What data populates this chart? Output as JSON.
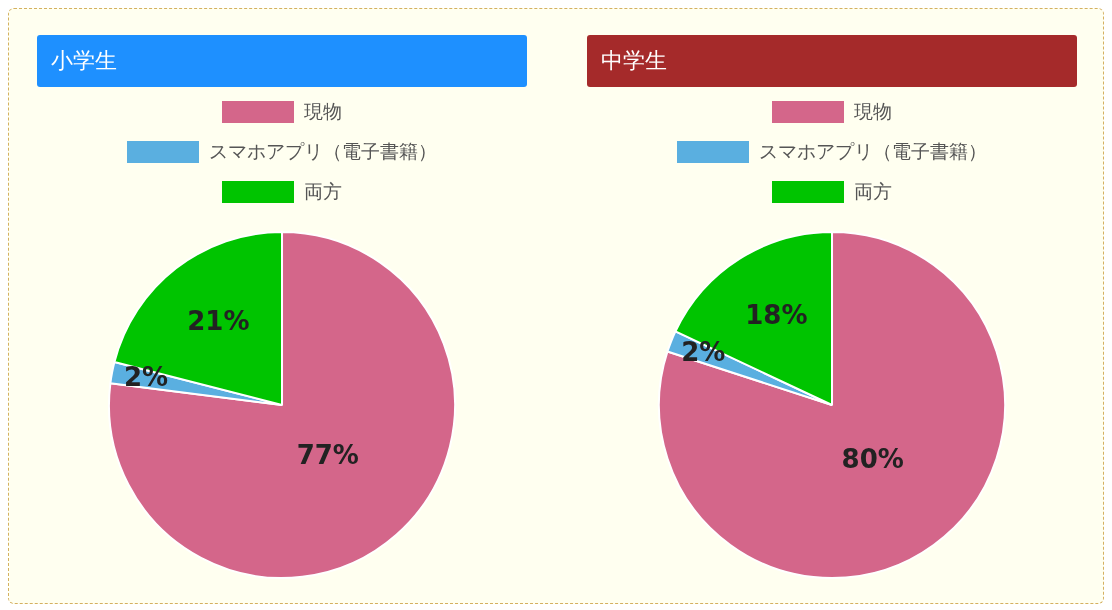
{
  "chart_data": [
    {
      "type": "pie",
      "title": "小学生",
      "categories": [
        "現物",
        "スマホアプリ（電子書籍）",
        "両方"
      ],
      "values": [
        77,
        2,
        21
      ],
      "value_labels": [
        "77%",
        "2%",
        "21%"
      ],
      "colors": [
        "#d4668a",
        "#5aafe0",
        "#00c400"
      ],
      "legend": "top"
    },
    {
      "type": "pie",
      "title": "中学生",
      "categories": [
        "現物",
        "スマホアプリ（電子書籍）",
        "両方"
      ],
      "values": [
        80,
        2,
        18
      ],
      "value_labels": [
        "80%",
        "2%",
        "18%"
      ],
      "colors": [
        "#d4668a",
        "#5aafe0",
        "#00c400"
      ],
      "legend": "top"
    }
  ]
}
